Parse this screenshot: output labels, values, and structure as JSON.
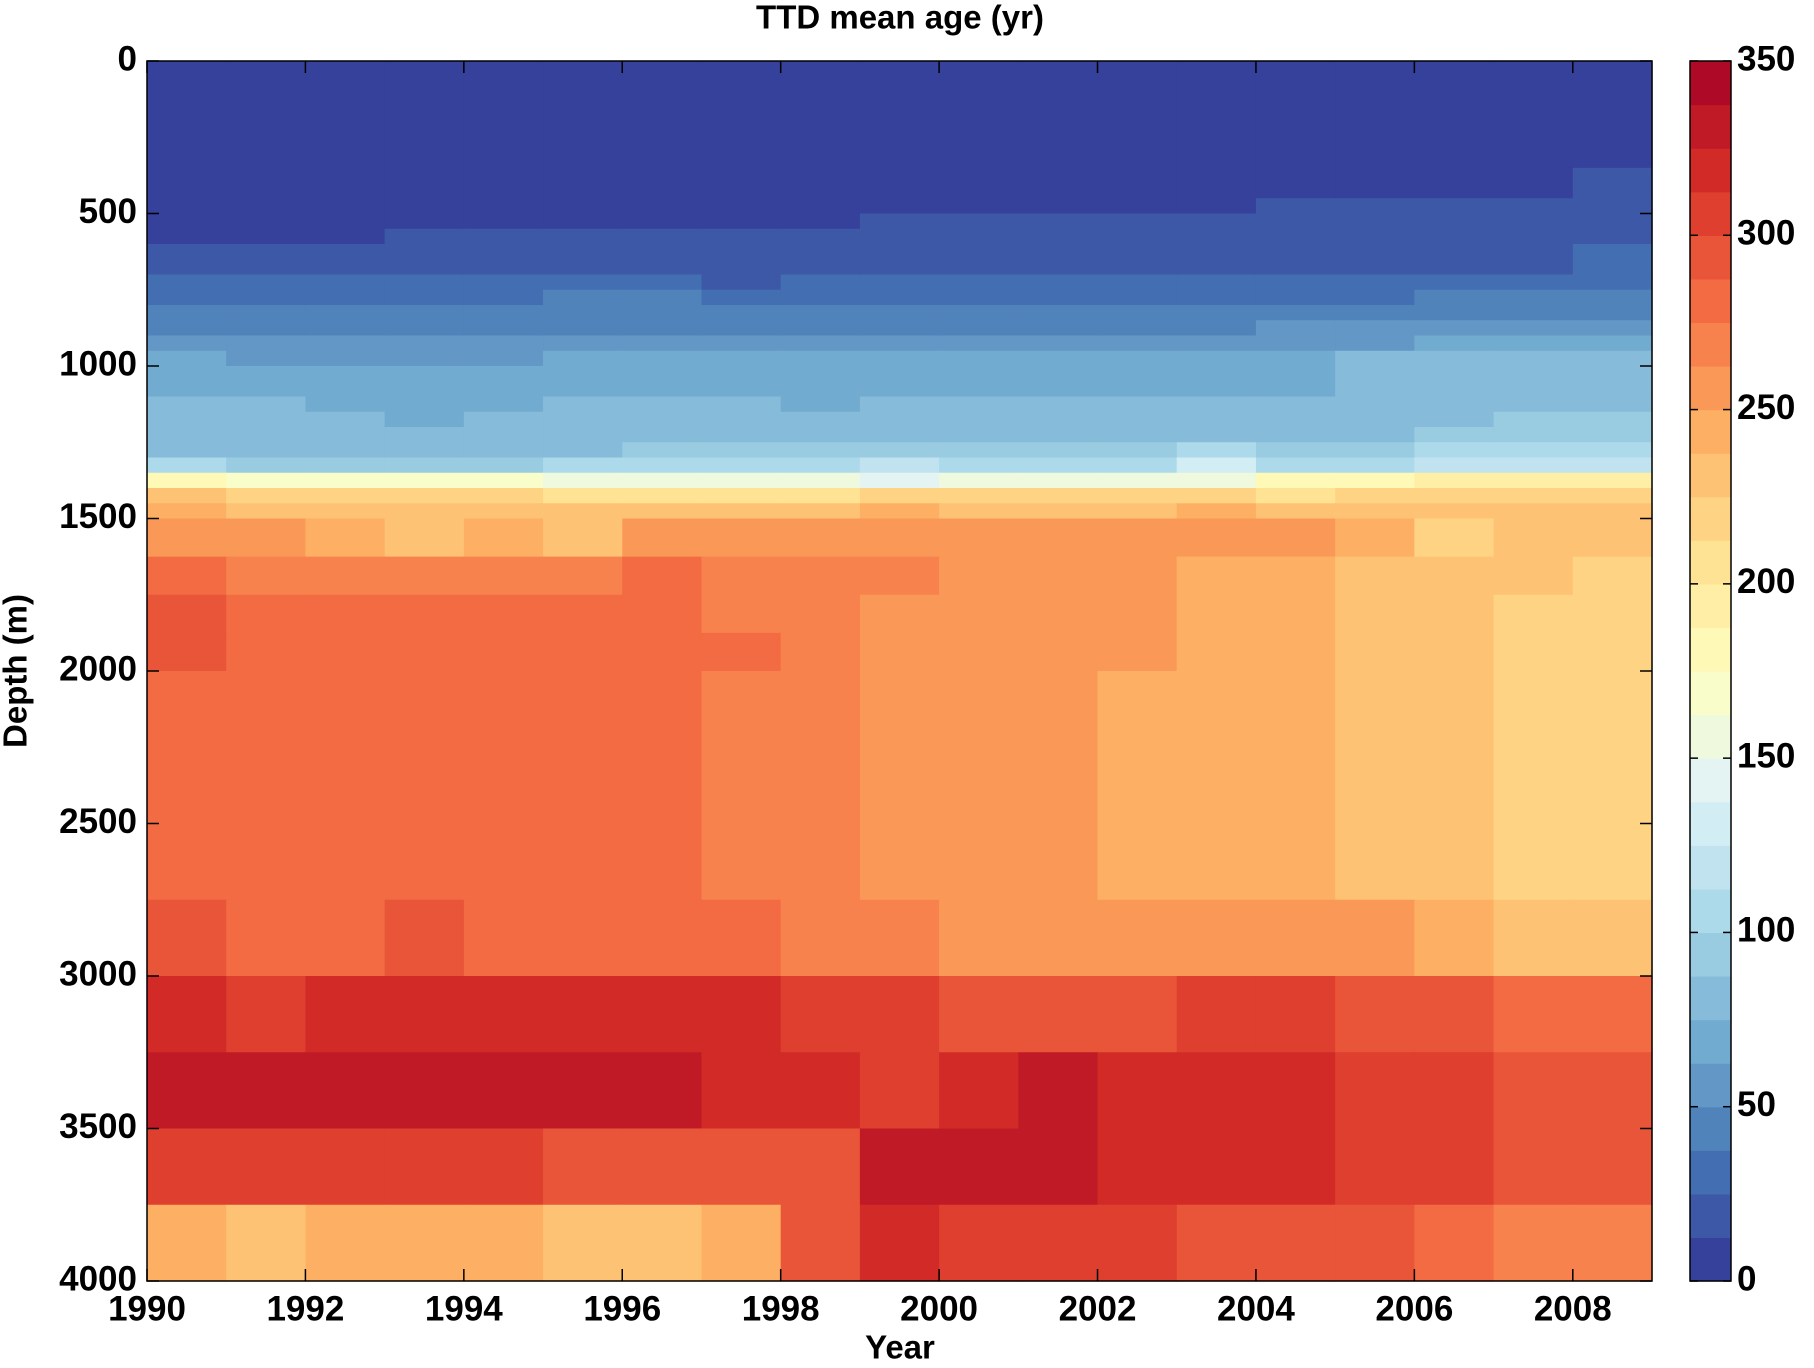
{
  "chart_data": {
    "type": "heatmap",
    "title": "TTD mean age (yr)",
    "x_label": "Year",
    "y_label": "Depth (m)",
    "x_edges": [
      1990,
      1991,
      1992,
      1993,
      1994,
      1995,
      1996,
      1997,
      1998,
      1999,
      2000,
      2001,
      2002,
      2003,
      2004,
      2005,
      2006,
      2007,
      2008,
      2009
    ],
    "depth_edges": [
      0,
      350,
      450,
      500,
      550,
      600,
      700,
      750,
      800,
      850,
      900,
      950,
      1000,
      1100,
      1150,
      1200,
      1250,
      1300,
      1350,
      1400,
      1450,
      1500,
      1625,
      1750,
      1875,
      2000,
      2750,
      3000,
      3250,
      3500,
      3750,
      4000
    ],
    "values": [
      [
        6,
        6,
        6,
        6,
        6,
        6,
        6,
        6,
        6,
        6,
        6,
        6,
        6,
        6,
        6,
        6,
        6,
        6,
        6
      ],
      [
        6,
        6,
        6,
        6,
        6,
        6,
        6,
        6,
        6,
        6,
        6,
        6,
        6,
        6,
        6,
        6,
        6,
        6,
        19
      ],
      [
        6,
        6,
        6,
        6,
        6,
        6,
        6,
        6,
        6,
        6,
        6,
        6,
        6,
        6,
        19,
        19,
        19,
        19,
        19
      ],
      [
        6,
        6,
        6,
        6,
        6,
        6,
        6,
        6,
        6,
        19,
        19,
        19,
        19,
        19,
        19,
        19,
        19,
        19,
        19
      ],
      [
        6,
        6,
        6,
        19,
        19,
        19,
        19,
        19,
        19,
        19,
        19,
        19,
        19,
        19,
        19,
        19,
        19,
        19,
        19
      ],
      [
        19,
        19,
        19,
        19,
        19,
        19,
        19,
        19,
        19,
        19,
        19,
        19,
        19,
        19,
        19,
        19,
        19,
        19,
        31
      ],
      [
        31,
        31,
        31,
        31,
        31,
        31,
        31,
        19,
        31,
        31,
        31,
        31,
        31,
        31,
        31,
        31,
        31,
        31,
        31
      ],
      [
        31,
        31,
        31,
        31,
        31,
        44,
        44,
        31,
        31,
        31,
        31,
        31,
        31,
        31,
        31,
        31,
        44,
        44,
        44
      ],
      [
        44,
        44,
        44,
        44,
        44,
        44,
        44,
        44,
        44,
        44,
        44,
        44,
        44,
        44,
        44,
        44,
        44,
        44,
        44
      ],
      [
        44,
        44,
        44,
        44,
        44,
        44,
        44,
        44,
        44,
        44,
        44,
        44,
        44,
        44,
        56,
        56,
        56,
        56,
        56
      ],
      [
        56,
        56,
        56,
        56,
        56,
        56,
        56,
        56,
        56,
        56,
        56,
        56,
        56,
        56,
        56,
        56,
        69,
        69,
        69
      ],
      [
        69,
        56,
        56,
        56,
        56,
        69,
        69,
        69,
        69,
        69,
        69,
        69,
        69,
        69,
        69,
        81,
        81,
        81,
        81
      ],
      [
        69,
        69,
        69,
        69,
        69,
        69,
        69,
        69,
        69,
        69,
        69,
        69,
        69,
        69,
        69,
        81,
        81,
        81,
        81
      ],
      [
        81,
        81,
        69,
        69,
        69,
        81,
        81,
        81,
        69,
        81,
        81,
        81,
        81,
        81,
        81,
        81,
        81,
        81,
        81
      ],
      [
        81,
        81,
        81,
        69,
        81,
        81,
        81,
        81,
        81,
        81,
        81,
        81,
        81,
        81,
        81,
        81,
        81,
        94,
        94
      ],
      [
        81,
        81,
        81,
        81,
        81,
        81,
        81,
        81,
        81,
        81,
        81,
        81,
        81,
        81,
        81,
        81,
        94,
        94,
        94
      ],
      [
        81,
        81,
        81,
        81,
        81,
        81,
        94,
        94,
        94,
        94,
        94,
        94,
        94,
        106,
        94,
        94,
        106,
        106,
        106
      ],
      [
        106,
        94,
        94,
        94,
        94,
        106,
        106,
        106,
        106,
        119,
        106,
        106,
        106,
        131,
        106,
        106,
        119,
        119,
        119
      ],
      [
        181,
        169,
        169,
        169,
        169,
        156,
        156,
        156,
        156,
        144,
        156,
        156,
        156,
        156,
        181,
        181,
        194,
        194,
        194
      ],
      [
        231,
        219,
        219,
        219,
        219,
        206,
        206,
        206,
        206,
        219,
        219,
        219,
        219,
        219,
        206,
        219,
        219,
        219,
        219
      ],
      [
        244,
        231,
        231,
        231,
        231,
        231,
        231,
        231,
        231,
        244,
        231,
        231,
        231,
        244,
        231,
        231,
        231,
        231,
        231
      ],
      [
        256,
        256,
        244,
        231,
        244,
        231,
        256,
        256,
        256,
        256,
        256,
        256,
        256,
        256,
        256,
        244,
        219,
        231,
        231
      ],
      [
        281,
        269,
        269,
        269,
        269,
        269,
        281,
        269,
        269,
        269,
        256,
        256,
        256,
        244,
        244,
        231,
        231,
        231,
        219
      ],
      [
        294,
        281,
        281,
        281,
        281,
        281,
        281,
        269,
        269,
        256,
        256,
        256,
        256,
        244,
        244,
        231,
        231,
        219,
        219
      ],
      [
        294,
        281,
        281,
        281,
        281,
        281,
        281,
        281,
        269,
        256,
        256,
        256,
        256,
        244,
        244,
        231,
        231,
        219,
        219
      ],
      [
        281,
        281,
        281,
        281,
        281,
        281,
        281,
        269,
        269,
        256,
        256,
        256,
        244,
        244,
        244,
        231,
        231,
        219,
        219
      ],
      [
        294,
        281,
        281,
        294,
        281,
        281,
        281,
        281,
        269,
        269,
        256,
        256,
        256,
        256,
        256,
        256,
        244,
        231,
        231
      ],
      [
        319,
        306,
        319,
        319,
        319,
        319,
        319,
        319,
        306,
        306,
        294,
        294,
        294,
        306,
        306,
        294,
        294,
        281,
        281
      ],
      [
        331,
        331,
        331,
        331,
        331,
        331,
        331,
        319,
        319,
        306,
        319,
        331,
        319,
        319,
        319,
        306,
        306,
        294,
        294
      ],
      [
        306,
        306,
        306,
        306,
        306,
        294,
        294,
        294,
        294,
        331,
        331,
        331,
        319,
        319,
        319,
        306,
        306,
        294,
        294
      ],
      [
        244,
        231,
        244,
        244,
        244,
        231,
        231,
        244,
        294,
        319,
        306,
        306,
        306,
        294,
        294,
        294,
        281,
        269,
        269
      ]
    ],
    "xlim": [
      1990,
      2009
    ],
    "xticks": [
      1990,
      1992,
      1994,
      1996,
      1998,
      2000,
      2002,
      2004,
      2006,
      2008
    ],
    "ylim": [
      4000,
      0
    ],
    "yticks": [
      0,
      500,
      1000,
      1500,
      2000,
      2500,
      3000,
      3500,
      4000
    ],
    "clim": [
      0,
      350
    ],
    "cticks": [
      0,
      50,
      100,
      150,
      200,
      250,
      300,
      350
    ],
    "levels": 28,
    "colormap": [
      "#313695",
      "#4575b4",
      "#74add1",
      "#abd9e9",
      "#e0f3f8",
      "#ffffbf",
      "#fee090",
      "#fdae61",
      "#f46d43",
      "#d73027",
      "#a50026"
    ]
  }
}
